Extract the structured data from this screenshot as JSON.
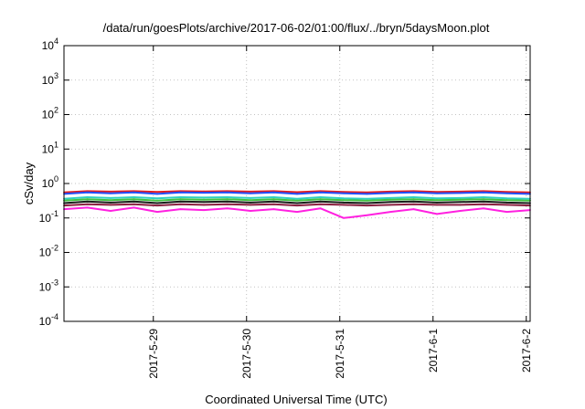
{
  "chart_data": {
    "type": "line",
    "title": "/data/run/goesPlots/archive/2017-06-02/01:00/flux/../bryn/5daysMoon.plot",
    "xlabel": "Coordinated Universal Time (UTC)",
    "ylabel": "cSv/day",
    "yscale": "log",
    "ylim": [
      0.0001,
      10000
    ],
    "xlim": [
      "2017-05-28T01:00",
      "2017-06-02T01:00"
    ],
    "grid": true,
    "legend": "none",
    "y_ticks": [
      {
        "base": "10",
        "exp": "-4",
        "value": 0.0001
      },
      {
        "base": "10",
        "exp": "-3",
        "value": 0.001
      },
      {
        "base": "10",
        "exp": "-2",
        "value": 0.01
      },
      {
        "base": "10",
        "exp": "-1",
        "value": 0.1
      },
      {
        "base": "10",
        "exp": "0",
        "value": 1
      },
      {
        "base": "10",
        "exp": "1",
        "value": 10
      },
      {
        "base": "10",
        "exp": "2",
        "value": 100
      },
      {
        "base": "10",
        "exp": "3",
        "value": 1000
      },
      {
        "base": "10",
        "exp": "4",
        "value": 10000
      }
    ],
    "x_ticks": [
      {
        "label": "2017-5-29",
        "date": "2017-05-29T00:00"
      },
      {
        "label": "2017-5-30",
        "date": "2017-05-30T00:00"
      },
      {
        "label": "2017-5-31",
        "date": "2017-05-31T00:00"
      },
      {
        "label": "2017-6-1",
        "date": "2017-06-01T00:00"
      },
      {
        "label": "2017-6-2",
        "date": "2017-06-02T00:00"
      }
    ],
    "x": [
      "2017-05-28T01:00",
      "2017-05-28T07:00",
      "2017-05-28T13:00",
      "2017-05-28T19:00",
      "2017-05-29T01:00",
      "2017-05-29T07:00",
      "2017-05-29T13:00",
      "2017-05-29T19:00",
      "2017-05-30T01:00",
      "2017-05-30T07:00",
      "2017-05-30T13:00",
      "2017-05-30T19:00",
      "2017-05-31T01:00",
      "2017-05-31T07:00",
      "2017-05-31T13:00",
      "2017-05-31T19:00",
      "2017-06-01T01:00",
      "2017-06-01T07:00",
      "2017-06-01T13:00",
      "2017-06-01T19:00",
      "2017-06-02T01:00"
    ],
    "series": [
      {
        "color": "#e41a1c",
        "values": [
          0.55,
          0.6,
          0.58,
          0.6,
          0.57,
          0.6,
          0.59,
          0.6,
          0.58,
          0.6,
          0.56,
          0.6,
          0.57,
          0.55,
          0.58,
          0.6,
          0.57,
          0.58,
          0.6,
          0.57,
          0.55
        ]
      },
      {
        "color": "#2050ff",
        "values": [
          0.5,
          0.55,
          0.52,
          0.55,
          0.5,
          0.55,
          0.54,
          0.55,
          0.52,
          0.55,
          0.5,
          0.55,
          0.52,
          0.5,
          0.53,
          0.55,
          0.52,
          0.53,
          0.55,
          0.52,
          0.5
        ]
      },
      {
        "color": "#30d0c0",
        "values": [
          0.36,
          0.4,
          0.38,
          0.4,
          0.37,
          0.4,
          0.39,
          0.4,
          0.38,
          0.4,
          0.36,
          0.4,
          0.37,
          0.36,
          0.38,
          0.4,
          0.37,
          0.38,
          0.4,
          0.37,
          0.36
        ]
      },
      {
        "color": "#40c040",
        "values": [
          0.32,
          0.35,
          0.33,
          0.35,
          0.32,
          0.35,
          0.34,
          0.35,
          0.33,
          0.35,
          0.32,
          0.35,
          0.33,
          0.32,
          0.34,
          0.35,
          0.33,
          0.34,
          0.35,
          0.33,
          0.32
        ]
      },
      {
        "color": "#1a1a1a",
        "values": [
          0.27,
          0.3,
          0.28,
          0.3,
          0.27,
          0.3,
          0.29,
          0.3,
          0.28,
          0.3,
          0.27,
          0.3,
          0.28,
          0.27,
          0.29,
          0.3,
          0.28,
          0.29,
          0.3,
          0.28,
          0.27
        ]
      },
      {
        "color": "#8b2040",
        "values": [
          0.23,
          0.25,
          0.24,
          0.25,
          0.23,
          0.25,
          0.24,
          0.25,
          0.24,
          0.25,
          0.23,
          0.25,
          0.24,
          0.23,
          0.24,
          0.25,
          0.24,
          0.24,
          0.25,
          0.24,
          0.23
        ]
      },
      {
        "color": "#ff20e0",
        "values": [
          0.18,
          0.2,
          0.16,
          0.2,
          0.15,
          0.18,
          0.17,
          0.19,
          0.16,
          0.18,
          0.15,
          0.19,
          0.1,
          0.12,
          0.15,
          0.18,
          0.13,
          0.16,
          0.19,
          0.15,
          0.17
        ]
      }
    ]
  }
}
